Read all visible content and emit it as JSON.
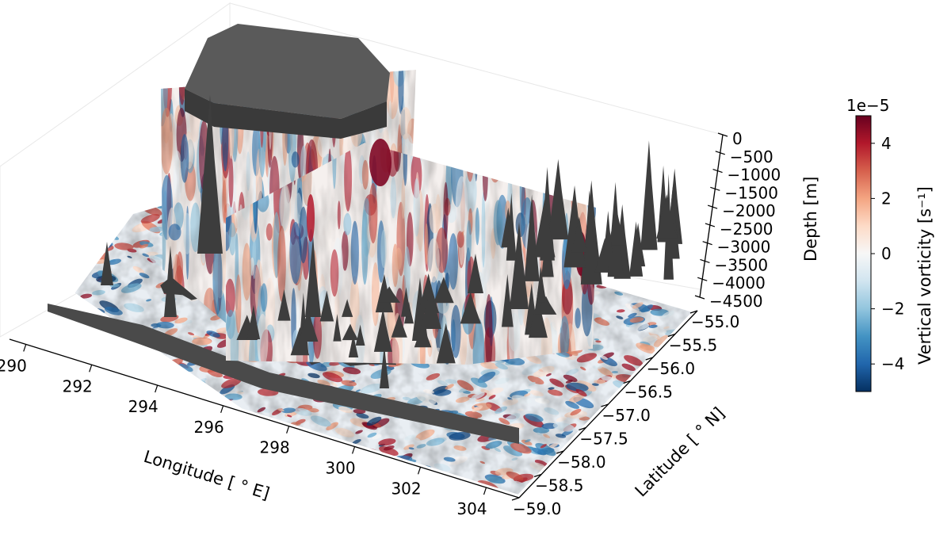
{
  "chart_data": {
    "type": "3d-surface-slices",
    "grid": false,
    "x_axis": {
      "label": "Longitude [$^\\circ$ E]",
      "label_text": "Longitude [ ° E]",
      "lim": [
        289.5,
        305
      ],
      "ticks": [
        290,
        292,
        294,
        296,
        298,
        300,
        302,
        304
      ],
      "tick_labels": [
        "290",
        "292",
        "294",
        "296",
        "298",
        "300",
        "302",
        "304"
      ]
    },
    "y_axis": {
      "label": "Latitude [ ° N]",
      "lim": [
        -59.0,
        -55.0
      ],
      "ticks": [
        -55.0,
        -55.5,
        -56.0,
        -56.5,
        -57.0,
        -57.5,
        -58.0,
        -58.5,
        -59.0
      ],
      "tick_labels": [
        "−55.0",
        "−55.5",
        "−56.0",
        "−56.5",
        "−57.0",
        "−57.5",
        "−58.0",
        "−58.5",
        "−59.0"
      ]
    },
    "z_axis": {
      "label": "Depth [m]",
      "lim": [
        0,
        4500
      ],
      "inverted": true,
      "ticks": [
        0,
        500,
        1000,
        1500,
        2000,
        2500,
        3000,
        3500,
        4000,
        4500
      ],
      "tick_labels": [
        "0",
        "−500",
        "−1000",
        "−1500",
        "−2000",
        "−2500",
        "−3000",
        "−3500",
        "−4000",
        "−4500"
      ]
    },
    "colorbar": {
      "label": "Vertical vorticity [s⁻¹]",
      "offset_text": "1e−5",
      "range": [
        -5,
        5
      ],
      "ticks": [
        4,
        2,
        0,
        -2,
        -4
      ],
      "tick_labels": [
        "4",
        "2",
        "0",
        "−2",
        "−4"
      ],
      "colormap": "RdBu_r",
      "colors": [
        "#053061",
        "#2166ac",
        "#4393c3",
        "#92c5de",
        "#d1e5f0",
        "#f7f7f7",
        "#fddbc7",
        "#f4a582",
        "#d6604d",
        "#b2182b",
        "#67001f"
      ]
    },
    "bathymetry_color": "#3d3d3d",
    "slices": [
      "horizontal",
      "meridional",
      "zonal"
    ]
  }
}
